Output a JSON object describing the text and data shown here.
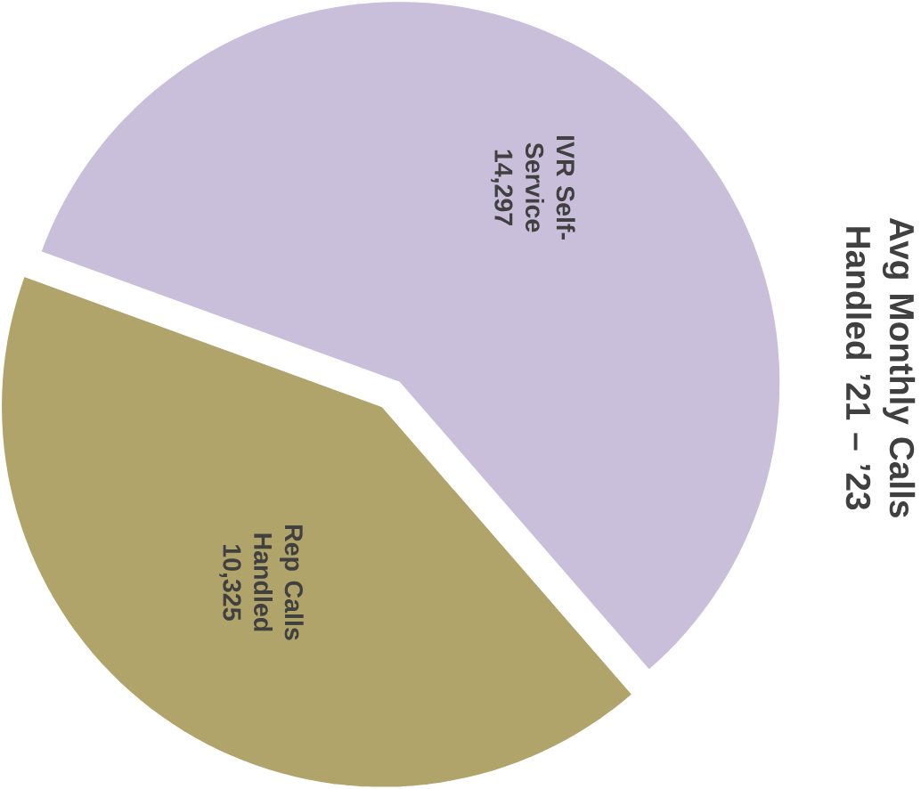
{
  "chart_data": {
    "type": "pie",
    "title": "Avg Monthly Calls Handled ’21 – ’23",
    "categories": [
      "IVR Self-Service",
      "Rep Calls Handled"
    ],
    "values": [
      14297,
      10325
    ],
    "colors": [
      "#c9bfda",
      "#b0a46a"
    ],
    "value_labels": [
      "14,297",
      "10,325"
    ]
  }
}
